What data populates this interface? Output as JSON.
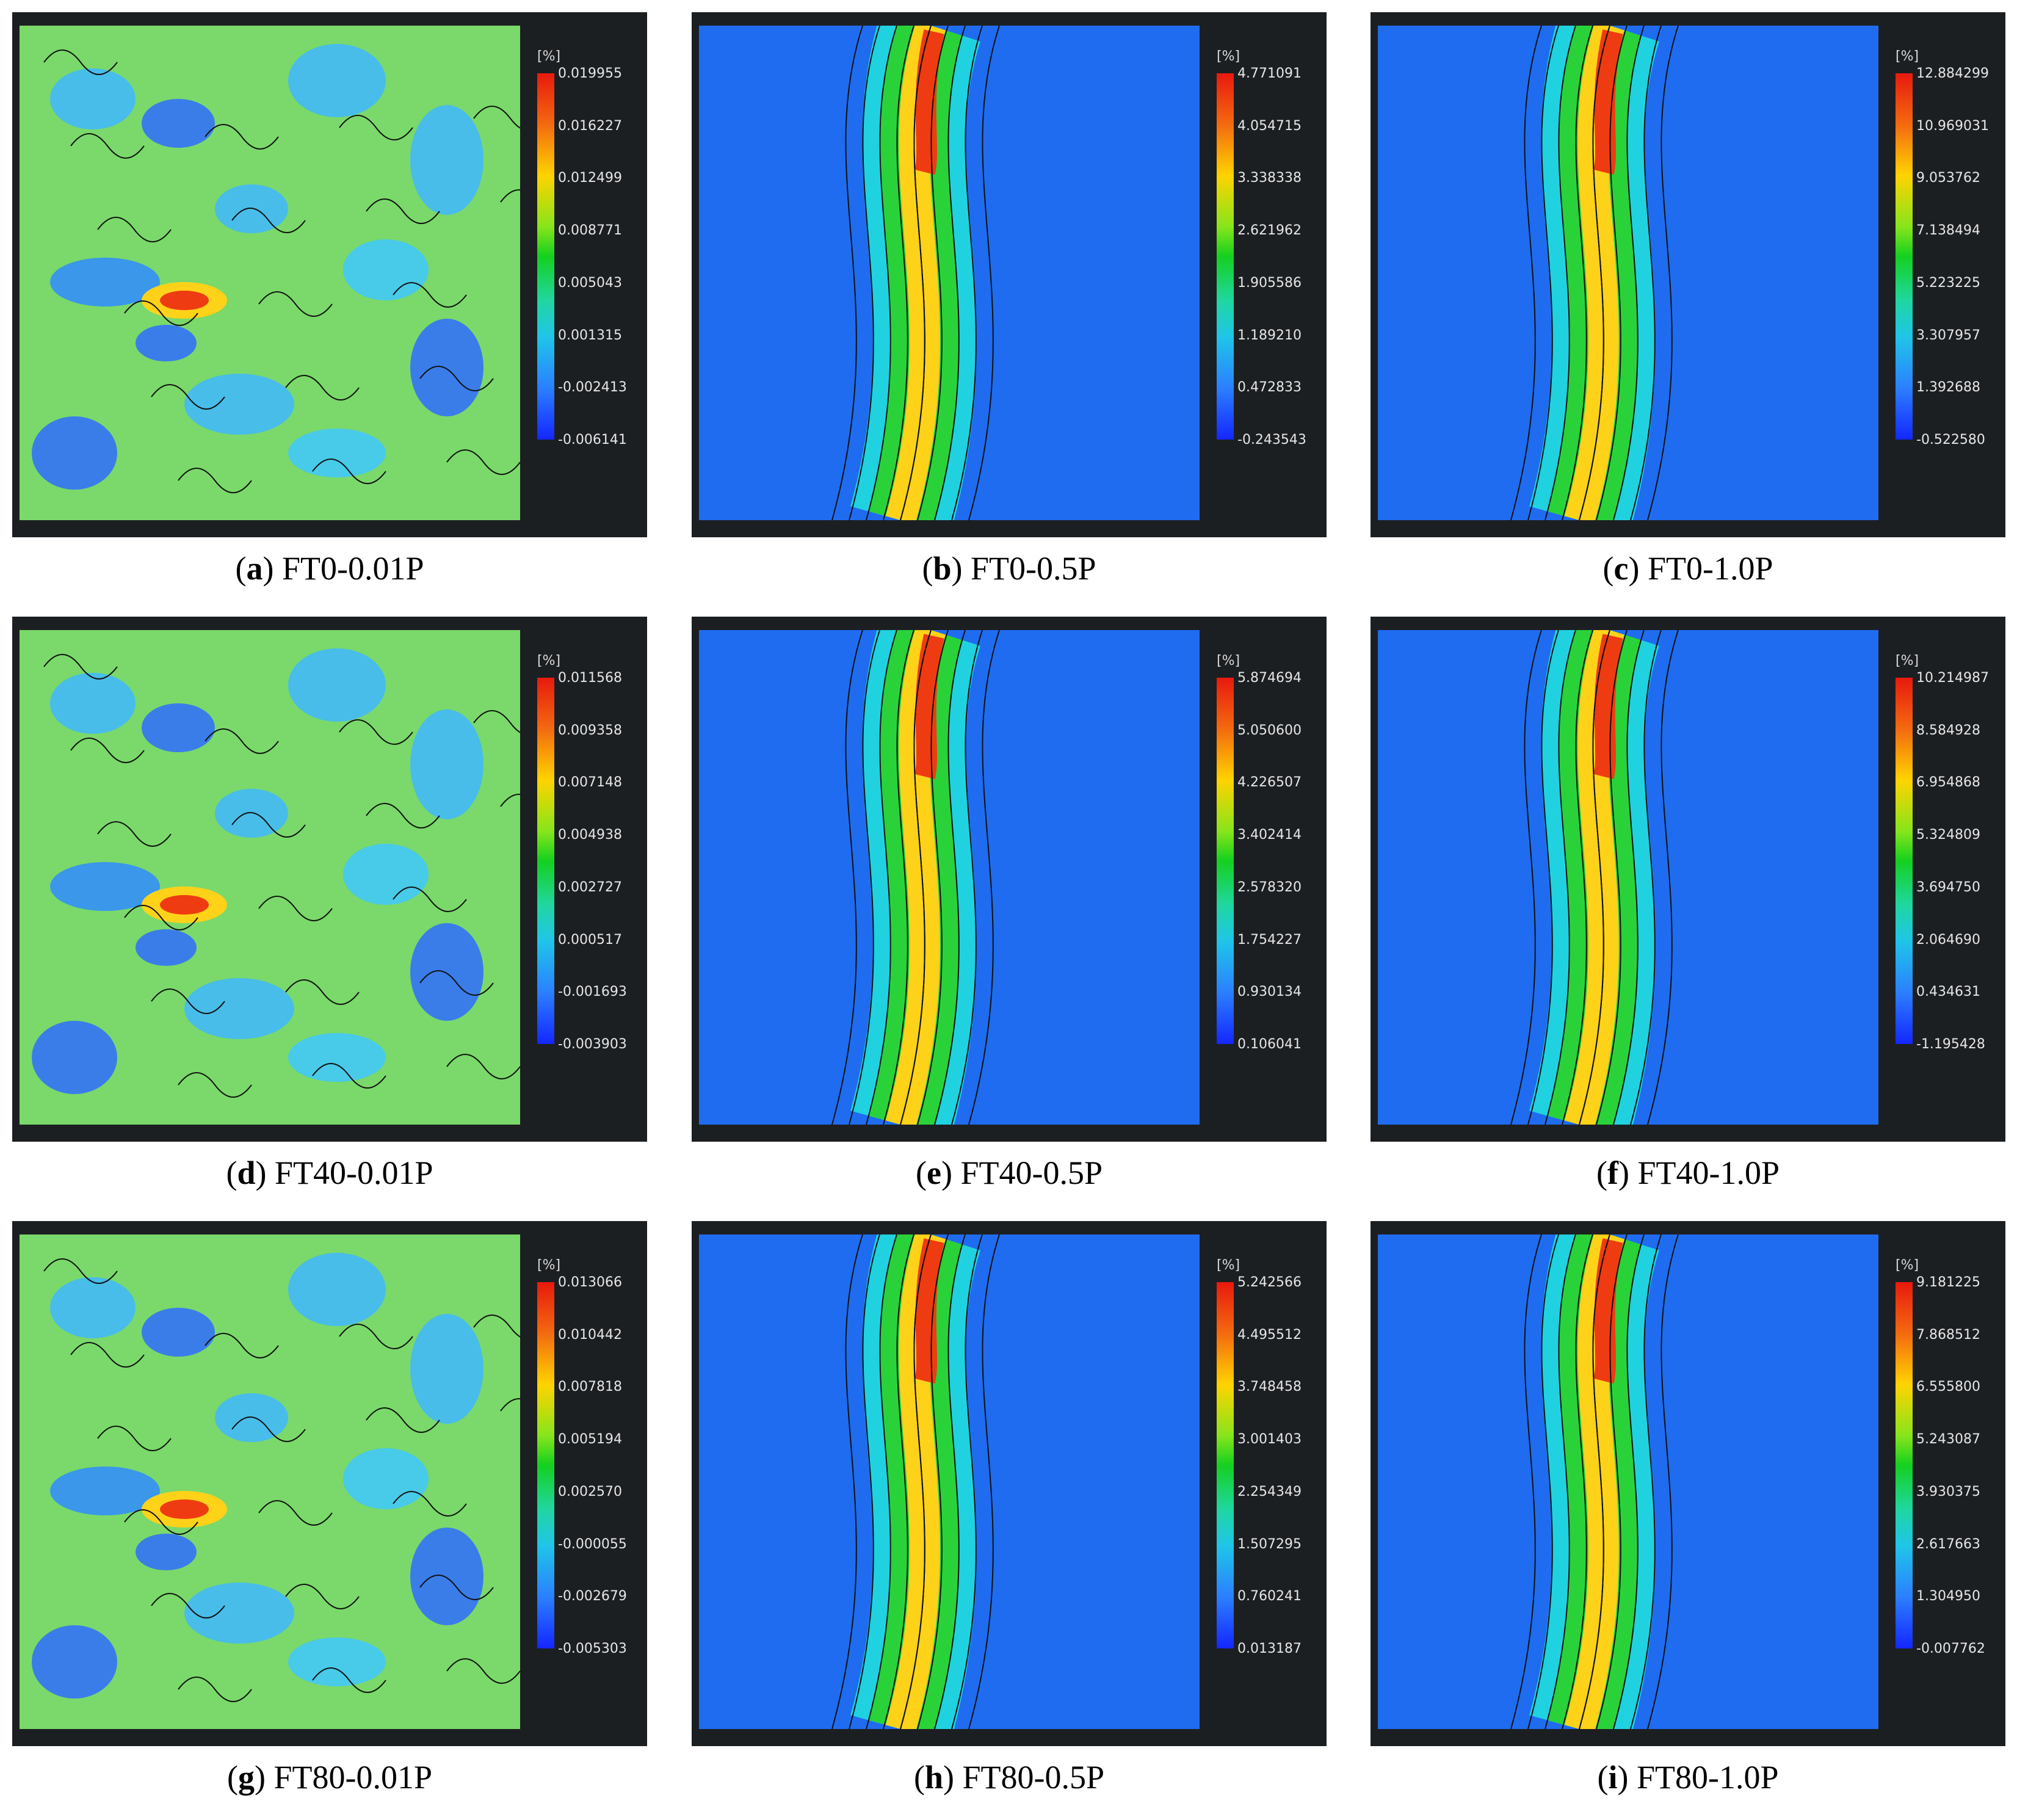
{
  "panels": [
    {
      "id": "a",
      "label": "FT0-0.01P",
      "unit": "[%]",
      "ticks": [
        "0.019955",
        "0.016227",
        "0.012499",
        "0.008771",
        "0.005043",
        "0.001315",
        "-0.002413",
        "-0.006141"
      ]
    },
    {
      "id": "b",
      "label": "FT0-0.5P",
      "unit": "[%]",
      "ticks": [
        "4.771091",
        "4.054715",
        "3.338338",
        "2.621962",
        "1.905586",
        "1.189210",
        "0.472833",
        "-0.243543"
      ]
    },
    {
      "id": "c",
      "label": "FT0-1.0P",
      "unit": "[%]",
      "ticks": [
        "12.884299",
        "10.969031",
        "9.053762",
        "7.138494",
        "5.223225",
        "3.307957",
        "1.392688",
        "-0.522580"
      ]
    },
    {
      "id": "d",
      "label": "FT40-0.01P",
      "unit": "[%]",
      "ticks": [
        "0.011568",
        "0.009358",
        "0.007148",
        "0.004938",
        "0.002727",
        "0.000517",
        "-0.001693",
        "-0.003903"
      ]
    },
    {
      "id": "e",
      "label": "FT40-0.5P",
      "unit": "[%]",
      "ticks": [
        "5.874694",
        "5.050600",
        "4.226507",
        "3.402414",
        "2.578320",
        "1.754227",
        "0.930134",
        "0.106041"
      ]
    },
    {
      "id": "f",
      "label": "FT40-1.0P",
      "unit": "[%]",
      "ticks": [
        "10.214987",
        "8.584928",
        "6.954868",
        "5.324809",
        "3.694750",
        "2.064690",
        "0.434631",
        "-1.195428"
      ]
    },
    {
      "id": "g",
      "label": "FT80-0.01P",
      "unit": "[%]",
      "ticks": [
        "0.013066",
        "0.010442",
        "0.007818",
        "0.005194",
        "0.002570",
        "-0.000055",
        "-0.002679",
        "-0.005303"
      ]
    },
    {
      "id": "h",
      "label": "FT80-0.5P",
      "unit": "[%]",
      "ticks": [
        "5.242566",
        "4.495512",
        "3.748458",
        "3.001403",
        "2.254349",
        "1.507295",
        "0.760241",
        "0.013187"
      ]
    },
    {
      "id": "i",
      "label": "FT80-1.0P",
      "unit": "[%]",
      "ticks": [
        "9.181225",
        "7.868512",
        "6.555800",
        "5.243087",
        "3.930375",
        "2.617663",
        "1.304950",
        "-0.007762"
      ]
    }
  ]
}
